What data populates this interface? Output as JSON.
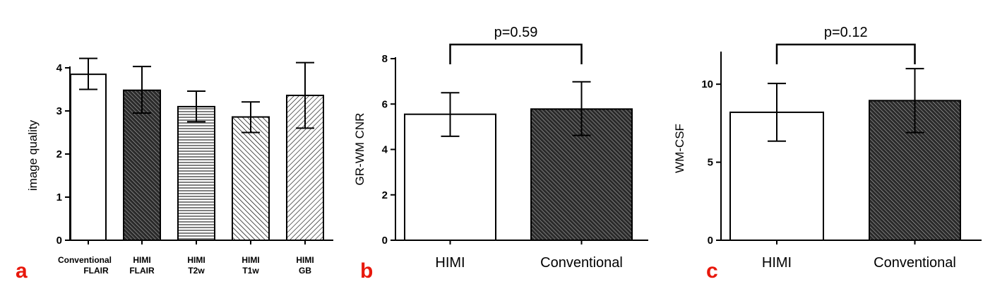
{
  "colors": {
    "axis": "#000000",
    "panel_label": "#e8180c",
    "solid_fill": "#2b2b2b"
  },
  "chart_data": [
    {
      "type": "bar",
      "panel_label": "a",
      "ylabel": "image quality",
      "ylim": [
        0,
        4
      ],
      "yticks": [
        "0",
        "1",
        "2",
        "3",
        "4"
      ],
      "categories": [
        [
          "Conventional",
          "FLAIR"
        ],
        [
          "HIMI",
          "FLAIR"
        ],
        [
          "HIMI",
          "T2w"
        ],
        [
          "HIMI",
          "T1w"
        ],
        [
          "HIMI",
          "GB"
        ]
      ],
      "values": [
        3.85,
        3.48,
        3.1,
        2.86,
        3.36
      ],
      "error_upper": [
        4.22,
        4.03,
        3.46,
        3.21,
        4.12
      ],
      "error_lower": [
        3.5,
        2.95,
        2.75,
        2.5,
        2.6
      ],
      "fills": [
        "white",
        "dark-hatch",
        "horizontal-lines",
        "diagonal-lines-left",
        "diagonal-lines-right"
      ]
    },
    {
      "type": "bar",
      "panel_label": "b",
      "ylabel": "GR-WM CNR",
      "ylim": [
        0,
        8
      ],
      "yticks": [
        "0",
        "2",
        "4",
        "6",
        "8"
      ],
      "categories": [
        "HIMI",
        "Conventional"
      ],
      "values": [
        5.55,
        5.78
      ],
      "error_upper": [
        6.5,
        6.98
      ],
      "error_lower": [
        4.58,
        4.62
      ],
      "fills": [
        "white",
        "dark-hatch"
      ],
      "annotation": "p=0.59"
    },
    {
      "type": "bar",
      "panel_label": "c",
      "ylabel": "WM-CSF",
      "ylim": [
        0,
        12
      ],
      "yticks": [
        "0",
        "5",
        "10"
      ],
      "categories": [
        "HIMI",
        "Conventional"
      ],
      "values": [
        8.2,
        8.95
      ],
      "error_upper": [
        10.05,
        11.0
      ],
      "error_lower": [
        6.35,
        6.9
      ],
      "fills": [
        "white",
        "dark-hatch"
      ],
      "annotation": "p=0.12"
    }
  ]
}
